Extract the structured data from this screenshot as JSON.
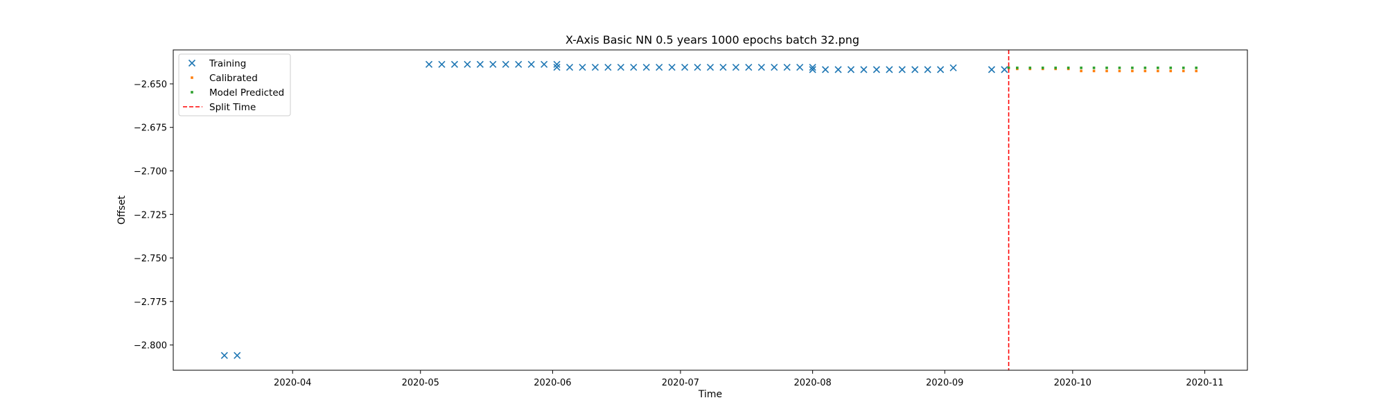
{
  "chart_data": {
    "type": "scatter",
    "title": "X-Axis Basic NN 0.5 years 1000 epochs batch 32.png",
    "xlabel": "Time",
    "ylabel": "Offset",
    "x_axis_type": "date",
    "xlim": [
      "2020-03-04",
      "2020-11-11"
    ],
    "ylim": [
      -2.8145,
      -2.6305
    ],
    "x_ticks": [
      "2020-04",
      "2020-05",
      "2020-06",
      "2020-07",
      "2020-08",
      "2020-09",
      "2020-10",
      "2020-11"
    ],
    "y_ticks": [
      "−2.650",
      "−2.675",
      "−2.700",
      "−2.725",
      "−2.750",
      "−2.775",
      "−2.800"
    ],
    "y_tick_values": [
      -2.65,
      -2.675,
      -2.7,
      -2.725,
      -2.75,
      -2.775,
      -2.8
    ],
    "grid": false,
    "legend_placement": "top-left",
    "series": [
      {
        "name": "Training",
        "marker": "x",
        "color": "#1f77b4",
        "points": [
          [
            "2020-03-16",
            -2.806
          ],
          [
            "2020-03-19",
            -2.806
          ],
          [
            "2020-05-03",
            -2.6388
          ],
          [
            "2020-05-06",
            -2.6388
          ],
          [
            "2020-05-09",
            -2.6388
          ],
          [
            "2020-05-12",
            -2.6388
          ],
          [
            "2020-05-15",
            -2.6388
          ],
          [
            "2020-05-18",
            -2.6388
          ],
          [
            "2020-05-21",
            -2.6388
          ],
          [
            "2020-05-24",
            -2.6388
          ],
          [
            "2020-05-27",
            -2.6388
          ],
          [
            "2020-05-30",
            -2.6388
          ],
          [
            "2020-06-02",
            -2.6388
          ],
          [
            "2020-06-02",
            -2.6405
          ],
          [
            "2020-06-05",
            -2.6405
          ],
          [
            "2020-06-08",
            -2.6405
          ],
          [
            "2020-06-11",
            -2.6405
          ],
          [
            "2020-06-14",
            -2.6405
          ],
          [
            "2020-06-17",
            -2.6405
          ],
          [
            "2020-06-20",
            -2.6405
          ],
          [
            "2020-06-23",
            -2.6405
          ],
          [
            "2020-06-26",
            -2.6405
          ],
          [
            "2020-06-29",
            -2.6405
          ],
          [
            "2020-07-02",
            -2.6405
          ],
          [
            "2020-07-05",
            -2.6405
          ],
          [
            "2020-07-08",
            -2.6405
          ],
          [
            "2020-07-11",
            -2.6405
          ],
          [
            "2020-07-14",
            -2.6405
          ],
          [
            "2020-07-17",
            -2.6405
          ],
          [
            "2020-07-20",
            -2.6405
          ],
          [
            "2020-07-23",
            -2.6405
          ],
          [
            "2020-07-26",
            -2.6405
          ],
          [
            "2020-07-29",
            -2.6405
          ],
          [
            "2020-08-01",
            -2.6405
          ],
          [
            "2020-08-01",
            -2.6418
          ],
          [
            "2020-08-04",
            -2.6418
          ],
          [
            "2020-08-07",
            -2.6418
          ],
          [
            "2020-08-10",
            -2.6418
          ],
          [
            "2020-08-13",
            -2.6418
          ],
          [
            "2020-08-16",
            -2.6418
          ],
          [
            "2020-08-19",
            -2.6418
          ],
          [
            "2020-08-22",
            -2.6418
          ],
          [
            "2020-08-25",
            -2.6418
          ],
          [
            "2020-08-28",
            -2.6418
          ],
          [
            "2020-08-31",
            -2.6418
          ],
          [
            "2020-09-03",
            -2.6408
          ],
          [
            "2020-09-12",
            -2.6418
          ],
          [
            "2020-09-15",
            -2.6418
          ]
        ]
      },
      {
        "name": "Calibrated",
        "marker": "square",
        "color": "#ff7f0e",
        "points": [
          [
            "2020-09-18",
            -2.6414
          ],
          [
            "2020-09-21",
            -2.6414
          ],
          [
            "2020-09-24",
            -2.6414
          ],
          [
            "2020-09-27",
            -2.6414
          ],
          [
            "2020-09-30",
            -2.6414
          ],
          [
            "2020-10-03",
            -2.6426
          ],
          [
            "2020-10-06",
            -2.6426
          ],
          [
            "2020-10-09",
            -2.6426
          ],
          [
            "2020-10-12",
            -2.6426
          ],
          [
            "2020-10-15",
            -2.6426
          ],
          [
            "2020-10-18",
            -2.6426
          ],
          [
            "2020-10-21",
            -2.6426
          ],
          [
            "2020-10-24",
            -2.6426
          ],
          [
            "2020-10-27",
            -2.6426
          ],
          [
            "2020-10-30",
            -2.6426
          ]
        ]
      },
      {
        "name": "Model Predicted",
        "marker": "square",
        "color": "#2ca02c",
        "points": [
          [
            "2020-09-16",
            -2.6408
          ],
          [
            "2020-09-18",
            -2.6408
          ],
          [
            "2020-09-21",
            -2.6408
          ],
          [
            "2020-09-24",
            -2.6408
          ],
          [
            "2020-09-27",
            -2.6408
          ],
          [
            "2020-09-30",
            -2.6408
          ],
          [
            "2020-10-03",
            -2.6408
          ],
          [
            "2020-10-06",
            -2.6408
          ],
          [
            "2020-10-09",
            -2.6408
          ],
          [
            "2020-10-12",
            -2.6408
          ],
          [
            "2020-10-15",
            -2.6408
          ],
          [
            "2020-10-18",
            -2.6408
          ],
          [
            "2020-10-21",
            -2.6408
          ],
          [
            "2020-10-24",
            -2.6408
          ],
          [
            "2020-10-27",
            -2.6408
          ],
          [
            "2020-10-30",
            -2.6408
          ]
        ]
      },
      {
        "name": "Split Time",
        "marker": "vline-dashed",
        "color": "#ff0000",
        "x": "2020-09-16"
      }
    ]
  }
}
